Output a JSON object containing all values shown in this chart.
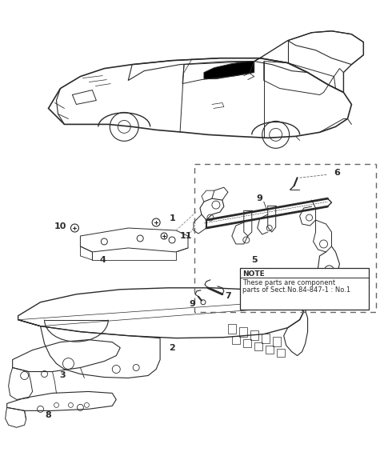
{
  "background_color": "#ffffff",
  "line_color": "#2a2a2a",
  "note_text_1": "NOTE",
  "note_text_2": "These parts are component",
  "note_text_3": "parts of Sect.No.84-847-1 : No.1",
  "figsize": [
    4.8,
    5.9
  ],
  "dpi": 100
}
